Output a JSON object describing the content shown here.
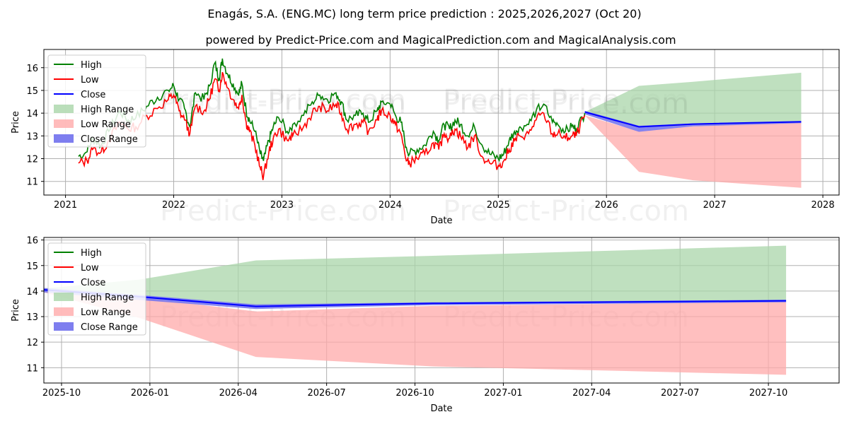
{
  "title": "Enagás, S.A. (ENG.MC) long term price prediction : 2025,2026,2027 (Oct 20)",
  "subtitle": "powered by Predict-Price.com and MagicalPrediction.com and MagicalAnalysis.com",
  "watermark": "Predict-Price.com",
  "colors": {
    "high": "#008000",
    "low": "#ff0000",
    "close": "#0000ff",
    "high_range": "#a9d6a9",
    "low_range": "#ffaaaa",
    "close_range": "#7777ee"
  },
  "chart_data": [
    {
      "type": "line",
      "name": "history-and-forecast",
      "xlabel": "Date",
      "ylabel": "Price",
      "xlim": [
        2020.8,
        2028.15
      ],
      "ylim": [
        10.4,
        16.8
      ],
      "x_ticks": [
        2021,
        2022,
        2023,
        2024,
        2025,
        2026,
        2027,
        2028
      ],
      "x_tick_labels": [
        "2021",
        "2022",
        "2023",
        "2024",
        "2025",
        "2026",
        "2027",
        "2028"
      ],
      "y_ticks": [
        11,
        12,
        13,
        14,
        15,
        16
      ],
      "legend": [
        "High",
        "Low",
        "Close",
        "High Range",
        "Low Range",
        "Close Range"
      ],
      "legend_position": "upper-left",
      "history_x": [
        2021.12,
        2021.2,
        2021.25,
        2021.33,
        2021.4,
        2021.5,
        2021.58,
        2021.65,
        2021.75,
        2021.85,
        2021.95,
        2022.0,
        2022.05,
        2022.1,
        2022.15,
        2022.2,
        2022.28,
        2022.33,
        2022.38,
        2022.42,
        2022.45,
        2022.5,
        2022.55,
        2022.6,
        2022.63,
        2022.67,
        2022.7,
        2022.75,
        2022.8,
        2022.83,
        2022.88,
        2022.92,
        2022.97,
        2023.05,
        2023.1,
        2023.2,
        2023.28,
        2023.35,
        2023.42,
        2023.5,
        2023.55,
        2023.6,
        2023.68,
        2023.75,
        2023.8,
        2023.88,
        2023.92,
        2024.0,
        2024.05,
        2024.1,
        2024.15,
        2024.18,
        2024.25,
        2024.32,
        2024.4,
        2024.45,
        2024.5,
        2024.55,
        2024.6,
        2024.65,
        2024.72,
        2024.78,
        2024.85,
        2024.92,
        2025.0,
        2025.05,
        2025.1,
        2025.15,
        2025.2,
        2025.28,
        2025.35,
        2025.42,
        2025.5,
        2025.55,
        2025.62,
        2025.68,
        2025.72,
        2025.8
      ],
      "history_high": [
        12.1,
        12.3,
        12.9,
        12.6,
        13.2,
        14.1,
        13.7,
        13.8,
        14.3,
        14.7,
        15.0,
        15.2,
        14.6,
        14.2,
        13.4,
        14.9,
        14.6,
        15.2,
        16.2,
        15.5,
        16.4,
        15.7,
        15.3,
        14.8,
        15.3,
        14.1,
        13.7,
        13.2,
        12.2,
        11.9,
        12.8,
        13.4,
        13.8,
        13.2,
        13.5,
        13.9,
        14.5,
        14.8,
        14.6,
        14.9,
        14.5,
        13.7,
        13.9,
        14.0,
        13.6,
        14.1,
        14.5,
        14.4,
        13.9,
        13.6,
        12.5,
        12.2,
        12.4,
        12.6,
        13.2,
        12.8,
        13.5,
        13.3,
        13.7,
        13.5,
        13.0,
        13.4,
        12.6,
        12.2,
        12.0,
        12.2,
        12.8,
        13.2,
        13.4,
        13.5,
        14.1,
        14.4,
        13.6,
        13.5,
        13.2,
        13.4,
        13.3,
        14.0
      ],
      "history_low": [
        11.8,
        11.9,
        12.4,
        12.3,
        12.8,
        13.6,
        13.3,
        13.4,
        13.9,
        14.2,
        14.6,
        14.8,
        14.1,
        13.7,
        13.1,
        14.3,
        14.1,
        14.6,
        15.5,
        15.0,
        15.8,
        15.1,
        14.6,
        14.2,
        14.8,
        13.6,
        13.2,
        12.6,
        11.6,
        11.2,
        12.3,
        12.9,
        13.3,
        12.8,
        13.0,
        13.4,
        14.0,
        14.3,
        14.1,
        14.4,
        14.0,
        13.3,
        13.5,
        13.6,
        13.2,
        13.7,
        14.1,
        13.9,
        13.5,
        13.1,
        11.9,
        11.8,
        12.0,
        12.2,
        12.7,
        12.4,
        13.1,
        12.9,
        13.3,
        13.0,
        12.5,
        13.0,
        12.1,
        11.8,
        11.7,
        11.9,
        12.4,
        12.8,
        13.0,
        13.1,
        13.7,
        14.0,
        13.1,
        13.1,
        12.9,
        13.0,
        13.0,
        13.9
      ],
      "forecast_x": [
        2025.8,
        2026.3,
        2026.8,
        2027.8
      ],
      "forecast_close": [
        14.05,
        13.4,
        13.52,
        13.62
      ],
      "forecast_high_range": [
        [
          14.05,
          14.05
        ],
        [
          13.45,
          15.2
        ],
        [
          13.55,
          15.38
        ],
        [
          13.65,
          15.78
        ]
      ],
      "forecast_low_range": [
        [
          13.9,
          13.9
        ],
        [
          11.42,
          13.2
        ],
        [
          11.05,
          13.42
        ],
        [
          10.72,
          13.58
        ]
      ],
      "forecast_close_range": [
        [
          13.95,
          14.1
        ],
        [
          13.18,
          13.45
        ],
        [
          13.42,
          13.55
        ],
        [
          13.56,
          13.66
        ]
      ]
    },
    {
      "type": "line",
      "name": "forecast-zoom",
      "xlabel": "Date",
      "ylabel": "Price",
      "xlim": [
        2025.7,
        2027.95
      ],
      "ylim": [
        10.4,
        16.1
      ],
      "x_ticks": [
        2025.75,
        2026.0,
        2026.25,
        2026.5,
        2026.75,
        2027.0,
        2027.25,
        2027.5,
        2027.75
      ],
      "x_tick_labels": [
        "2025-10",
        "2026-01",
        "2026-04",
        "2026-07",
        "2026-10",
        "2027-01",
        "2027-04",
        "2027-07",
        "2027-10"
      ],
      "y_ticks": [
        11,
        12,
        13,
        14,
        15,
        16
      ],
      "legend": [
        "High",
        "Low",
        "Close",
        "High Range",
        "Low Range",
        "Close Range"
      ],
      "legend_position": "upper-left",
      "forecast_x": [
        2025.7,
        2025.97,
        2026.3,
        2026.8,
        2027.8
      ],
      "forecast_close": [
        14.05,
        13.78,
        13.4,
        13.52,
        13.62
      ],
      "forecast_high_range": [
        [
          14.1,
          14.1
        ],
        [
          13.85,
          14.45
        ],
        [
          13.45,
          15.2
        ],
        [
          13.55,
          15.38
        ],
        [
          13.65,
          15.78
        ]
      ],
      "forecast_low_range": [
        [
          13.95,
          13.95
        ],
        [
          12.95,
          13.75
        ],
        [
          11.42,
          13.2
        ],
        [
          11.05,
          13.42
        ],
        [
          10.72,
          13.58
        ]
      ],
      "forecast_close_range": [
        [
          13.95,
          14.12
        ],
        [
          13.65,
          13.85
        ],
        [
          13.3,
          13.48
        ],
        [
          13.45,
          13.56
        ],
        [
          13.56,
          13.66
        ]
      ]
    }
  ]
}
